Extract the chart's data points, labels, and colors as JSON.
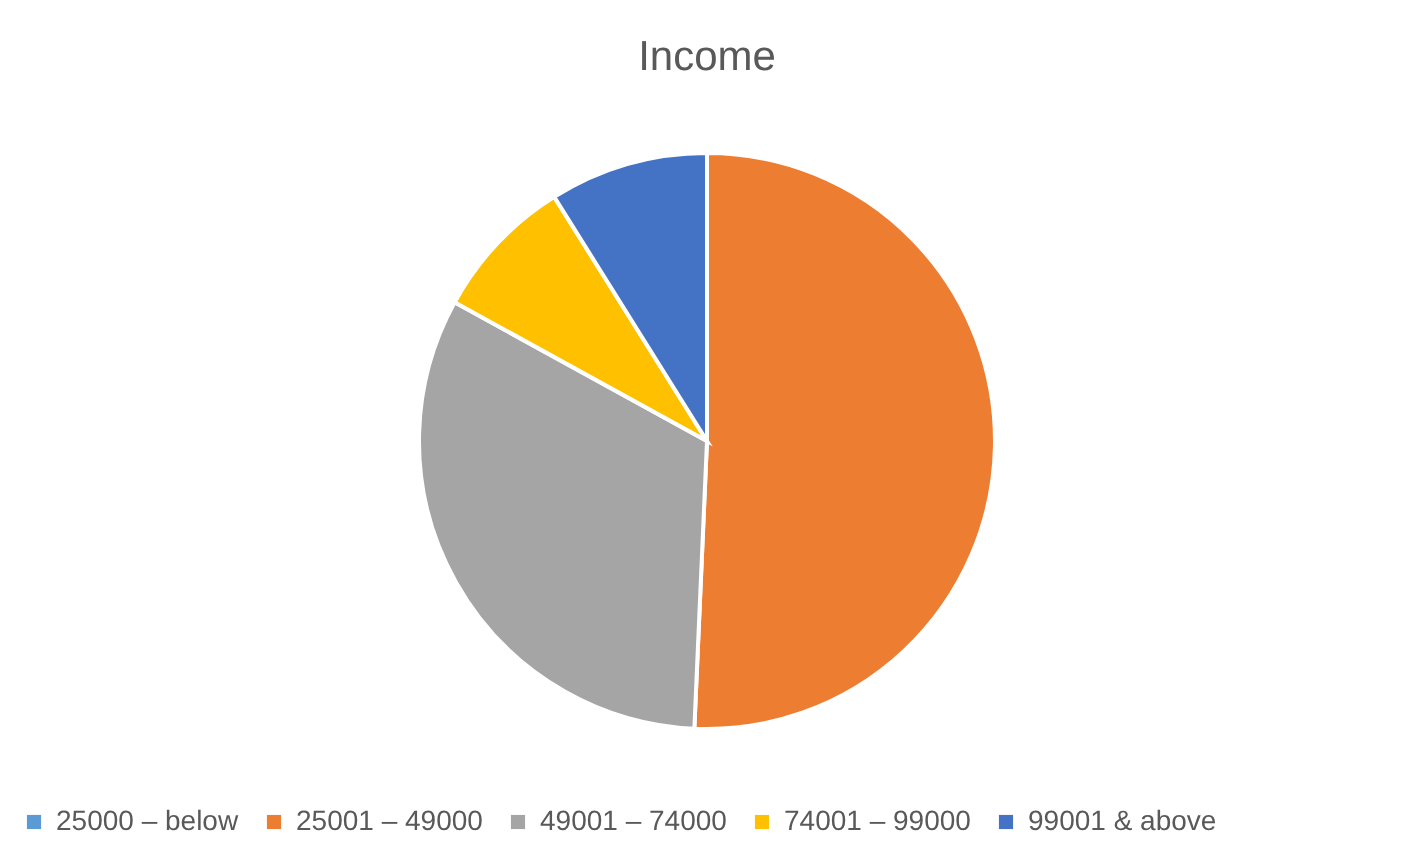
{
  "chart_data": {
    "type": "pie",
    "title": "Income",
    "categories": [
      "25000 – below",
      "25001 – 49000",
      "49001 – 74000",
      "74001 – 99000",
      "99001 & above"
    ],
    "values": [
      0,
      50.7,
      32.3,
      8.1,
      8.9
    ],
    "colors": [
      "#5b9bd5",
      "#ed7d31",
      "#a5a5a5",
      "#ffc000",
      "#4472c4"
    ],
    "legend": "bottom"
  }
}
